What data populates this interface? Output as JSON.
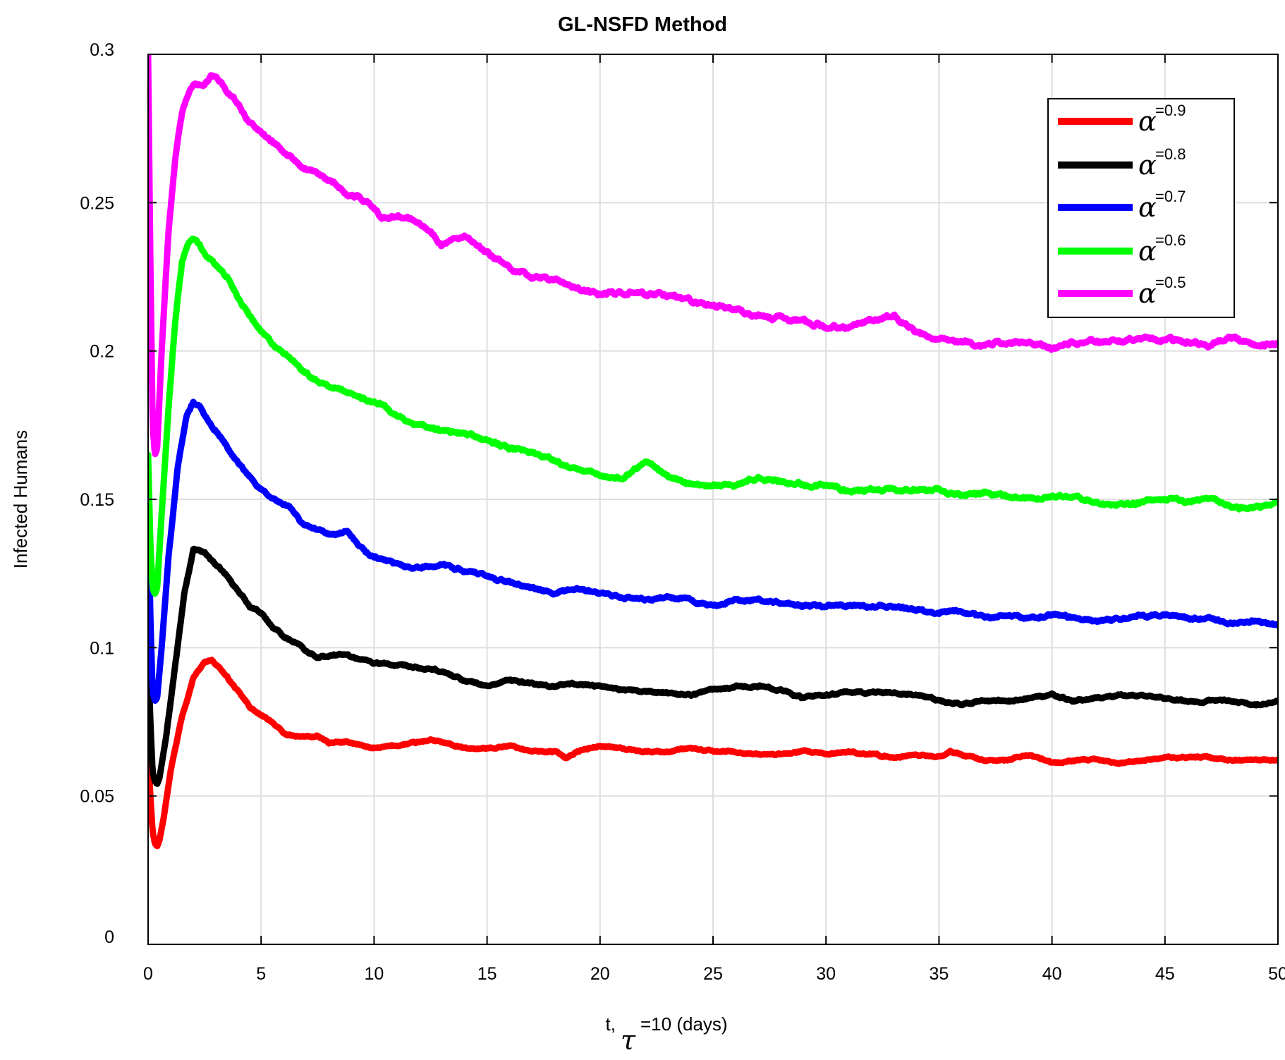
{
  "chart_data": {
    "type": "line",
    "title": "GL-NSFD Method",
    "xlabel": {
      "prefix": "t,",
      "symbol": "τ",
      "suffix": "=10 (days)"
    },
    "ylabel": "Infected Humans",
    "xlim": [
      0,
      50
    ],
    "ylim": [
      0,
      0.3
    ],
    "xticks": [
      0,
      5,
      10,
      15,
      20,
      25,
      30,
      35,
      40,
      45,
      50
    ],
    "xtick_labels": [
      "0",
      "5",
      "10",
      "15",
      "20",
      "25",
      "30",
      "35",
      "40",
      "45",
      "50"
    ],
    "yticks": [
      0,
      0.05,
      0.1,
      0.15,
      0.2,
      0.25,
      0.3
    ],
    "ytick_labels": [
      "0",
      "0.05",
      "0.1",
      "0.15",
      "0.2",
      "0.25",
      "0.3"
    ],
    "grid": true,
    "legend_position": "top-right",
    "series": [
      {
        "name": "α=0.9",
        "symbol": "α",
        "sup": "=0.9",
        "color": "#ff0000",
        "x": [
          0,
          0.1,
          0.2,
          0.3,
          0.4,
          0.5,
          0.7,
          1.0,
          1.5,
          2.0,
          2.5,
          2.8,
          3.2,
          3.6,
          4.0,
          4.5,
          5.0,
          5.5,
          6.0,
          6.5,
          7.0,
          7.5,
          8.0,
          8.5,
          9.0,
          9.5,
          10.0,
          11.0,
          12.0,
          12.5,
          13.0,
          14.0,
          15.0,
          16.0,
          17.0,
          18.0,
          18.5,
          19.0,
          20.0,
          21.0,
          22.0,
          23.0,
          24.0,
          25.0,
          26.0,
          27.0,
          28.0,
          29.0,
          30.0,
          31.0,
          32.0,
          33.0,
          34.0,
          35.0,
          35.5,
          36.0,
          37.0,
          38.0,
          39.0,
          40.0,
          41.0,
          42.0,
          43.0,
          44.0,
          45.0,
          46.0,
          47.0,
          48.0,
          49.0,
          50.0
        ],
        "values": [
          0.066,
          0.05,
          0.038,
          0.034,
          0.033,
          0.035,
          0.043,
          0.059,
          0.077,
          0.09,
          0.095,
          0.096,
          0.093,
          0.089,
          0.085,
          0.08,
          0.077,
          0.075,
          0.071,
          0.07,
          0.07,
          0.07,
          0.068,
          0.068,
          0.068,
          0.067,
          0.066,
          0.067,
          0.068,
          0.069,
          0.068,
          0.066,
          0.066,
          0.067,
          0.065,
          0.065,
          0.063,
          0.065,
          0.067,
          0.066,
          0.065,
          0.065,
          0.066,
          0.065,
          0.065,
          0.064,
          0.064,
          0.065,
          0.064,
          0.065,
          0.064,
          0.063,
          0.064,
          0.063,
          0.065,
          0.064,
          0.062,
          0.062,
          0.064,
          0.061,
          0.062,
          0.062,
          0.061,
          0.062,
          0.063,
          0.063,
          0.063,
          0.062,
          0.062,
          0.062
        ]
      },
      {
        "name": "α=0.8",
        "symbol": "α",
        "sup": "=0.8",
        "color": "#000000",
        "x": [
          0,
          0.1,
          0.2,
          0.3,
          0.4,
          0.5,
          0.8,
          1.2,
          1.6,
          2.0,
          2.5,
          3.0,
          3.5,
          4.0,
          4.5,
          5.0,
          5.5,
          6.0,
          6.5,
          7.0,
          7.5,
          8.0,
          8.5,
          9.0,
          9.5,
          10.0,
          11.0,
          12.0,
          13.0,
          14.0,
          15.0,
          16.0,
          17.0,
          18.0,
          19.0,
          20.0,
          21.0,
          22.0,
          23.0,
          24.0,
          25.0,
          26.0,
          27.0,
          28.0,
          29.0,
          30.0,
          31.0,
          32.0,
          33.0,
          34.0,
          35.0,
          36.0,
          37.0,
          38.0,
          39.0,
          40.0,
          41.0,
          42.0,
          43.0,
          44.0,
          45.0,
          46.0,
          47.0,
          48.0,
          49.0,
          50.0
        ],
        "values": [
          0.1,
          0.075,
          0.058,
          0.055,
          0.054,
          0.056,
          0.07,
          0.094,
          0.118,
          0.133,
          0.132,
          0.128,
          0.124,
          0.119,
          0.114,
          0.112,
          0.107,
          0.104,
          0.102,
          0.099,
          0.097,
          0.097,
          0.098,
          0.097,
          0.096,
          0.095,
          0.094,
          0.093,
          0.092,
          0.089,
          0.087,
          0.089,
          0.088,
          0.087,
          0.088,
          0.087,
          0.086,
          0.085,
          0.085,
          0.084,
          0.086,
          0.087,
          0.087,
          0.086,
          0.083,
          0.084,
          0.085,
          0.085,
          0.085,
          0.084,
          0.082,
          0.081,
          0.082,
          0.082,
          0.083,
          0.084,
          0.082,
          0.083,
          0.084,
          0.084,
          0.083,
          0.082,
          0.082,
          0.082,
          0.081,
          0.082
        ]
      },
      {
        "name": "α=0.7",
        "symbol": "α",
        "sup": "=0.7",
        "color": "#0000ff",
        "x": [
          0,
          0.1,
          0.2,
          0.3,
          0.4,
          0.6,
          0.9,
          1.3,
          1.7,
          2.0,
          2.3,
          2.8,
          3.3,
          3.8,
          4.3,
          4.8,
          5.3,
          5.8,
          6.3,
          6.8,
          7.3,
          7.8,
          8.3,
          8.8,
          9.3,
          9.8,
          10.3,
          11.0,
          12.0,
          13.0,
          14.0,
          15.0,
          16.0,
          17.0,
          18.0,
          19.0,
          20.0,
          21.0,
          22.0,
          23.0,
          24.0,
          25.0,
          26.0,
          27.0,
          28.0,
          29.0,
          30.0,
          31.0,
          32.0,
          33.0,
          34.0,
          35.0,
          36.0,
          37.0,
          38.0,
          39.0,
          40.0,
          41.0,
          42.0,
          43.0,
          44.0,
          45.0,
          46.0,
          47.0,
          48.0,
          49.0,
          50.0
        ],
        "values": [
          0.155,
          0.11,
          0.085,
          0.082,
          0.083,
          0.1,
          0.13,
          0.16,
          0.178,
          0.183,
          0.181,
          0.175,
          0.17,
          0.164,
          0.159,
          0.155,
          0.151,
          0.149,
          0.147,
          0.142,
          0.14,
          0.139,
          0.138,
          0.139,
          0.134,
          0.131,
          0.13,
          0.128,
          0.127,
          0.128,
          0.126,
          0.124,
          0.122,
          0.12,
          0.118,
          0.12,
          0.118,
          0.117,
          0.116,
          0.117,
          0.116,
          0.114,
          0.116,
          0.116,
          0.115,
          0.114,
          0.114,
          0.114,
          0.114,
          0.114,
          0.113,
          0.112,
          0.112,
          0.11,
          0.111,
          0.11,
          0.111,
          0.11,
          0.109,
          0.11,
          0.111,
          0.111,
          0.11,
          0.11,
          0.108,
          0.109,
          0.108
        ]
      },
      {
        "name": "α=0.6",
        "symbol": "α",
        "sup": "=0.6",
        "color": "#00ff00",
        "x": [
          0,
          0.1,
          0.2,
          0.3,
          0.4,
          0.6,
          0.9,
          1.2,
          1.5,
          1.8,
          2.1,
          2.5,
          3.0,
          3.5,
          4.0,
          4.5,
          5.0,
          5.5,
          6.0,
          6.5,
          7.0,
          7.5,
          8.0,
          8.5,
          9.0,
          9.5,
          10.0,
          10.5,
          11.0,
          12.0,
          13.0,
          14.0,
          15.0,
          16.0,
          17.0,
          18.0,
          19.0,
          20.0,
          21.0,
          22.0,
          23.0,
          24.0,
          25.0,
          26.0,
          27.0,
          28.0,
          29.0,
          30.0,
          31.0,
          32.0,
          33.0,
          34.0,
          35.0,
          36.0,
          37.0,
          38.0,
          39.0,
          40.0,
          41.0,
          42.0,
          43.0,
          44.0,
          45.0,
          46.0,
          47.0,
          48.0,
          49.0,
          50.0
        ],
        "values": [
          0.165,
          0.135,
          0.12,
          0.118,
          0.12,
          0.145,
          0.18,
          0.21,
          0.23,
          0.237,
          0.238,
          0.233,
          0.229,
          0.225,
          0.218,
          0.212,
          0.207,
          0.202,
          0.199,
          0.196,
          0.192,
          0.19,
          0.188,
          0.187,
          0.186,
          0.184,
          0.183,
          0.181,
          0.178,
          0.175,
          0.173,
          0.172,
          0.17,
          0.167,
          0.166,
          0.163,
          0.16,
          0.158,
          0.157,
          0.163,
          0.158,
          0.155,
          0.155,
          0.155,
          0.157,
          0.156,
          0.155,
          0.155,
          0.153,
          0.153,
          0.153,
          0.153,
          0.153,
          0.151,
          0.152,
          0.151,
          0.15,
          0.151,
          0.151,
          0.149,
          0.148,
          0.149,
          0.15,
          0.149,
          0.15,
          0.147,
          0.147,
          0.149
        ]
      },
      {
        "name": "α=0.5",
        "symbol": "α",
        "sup": "=0.5",
        "color": "#ff00ff",
        "x": [
          0,
          0.1,
          0.2,
          0.3,
          0.4,
          0.6,
          0.9,
          1.2,
          1.5,
          1.8,
          2.1,
          2.5,
          2.9,
          3.3,
          3.8,
          4.3,
          4.8,
          5.3,
          5.8,
          6.3,
          6.8,
          7.3,
          7.8,
          8.3,
          8.8,
          9.3,
          9.8,
          10.3,
          11.0,
          12.0,
          13.0,
          14.0,
          15.0,
          16.0,
          17.0,
          18.0,
          19.0,
          20.0,
          21.0,
          22.0,
          23.0,
          24.0,
          25.0,
          26.0,
          27.0,
          28.0,
          29.0,
          30.0,
          31.0,
          32.0,
          33.0,
          34.0,
          35.0,
          36.0,
          37.0,
          38.0,
          39.0,
          40.0,
          41.0,
          42.0,
          43.0,
          44.0,
          45.0,
          46.0,
          47.0,
          48.0,
          49.0,
          50.0
        ],
        "values": [
          0.3,
          0.23,
          0.175,
          0.165,
          0.167,
          0.2,
          0.24,
          0.265,
          0.28,
          0.287,
          0.29,
          0.29,
          0.293,
          0.29,
          0.285,
          0.279,
          0.275,
          0.272,
          0.269,
          0.266,
          0.262,
          0.261,
          0.258,
          0.256,
          0.253,
          0.252,
          0.25,
          0.245,
          0.246,
          0.244,
          0.236,
          0.238,
          0.233,
          0.228,
          0.225,
          0.224,
          0.221,
          0.219,
          0.22,
          0.219,
          0.219,
          0.217,
          0.215,
          0.214,
          0.212,
          0.211,
          0.21,
          0.208,
          0.208,
          0.21,
          0.212,
          0.206,
          0.204,
          0.203,
          0.202,
          0.203,
          0.203,
          0.201,
          0.203,
          0.203,
          0.203,
          0.204,
          0.204,
          0.203,
          0.202,
          0.204,
          0.202,
          0.202
        ]
      }
    ]
  }
}
